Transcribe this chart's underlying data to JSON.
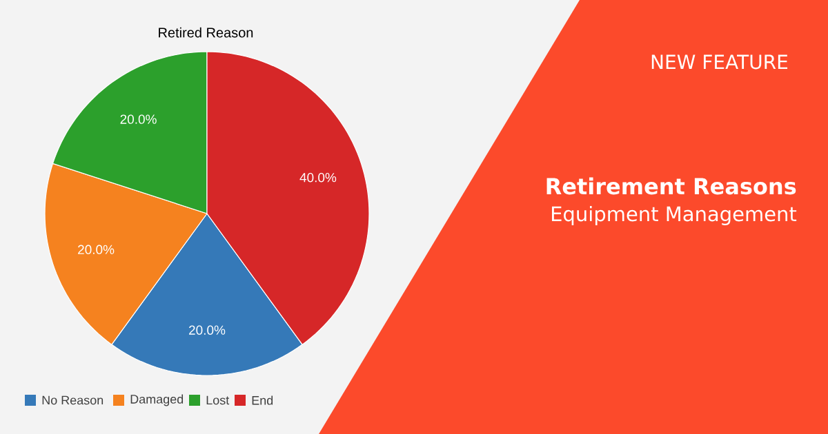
{
  "chart_data": {
    "type": "pie",
    "title": "Retired Reason",
    "categories": [
      "No Reason",
      "Damaged",
      "Lost",
      "End"
    ],
    "values": [
      20,
      20,
      20,
      40
    ],
    "value_labels": [
      "20.0%",
      "20.0%",
      "20.0%",
      "40.0%"
    ],
    "colors": [
      "#3579b8",
      "#f5821f",
      "#2ca02c",
      "#d62728"
    ],
    "legend": "bottom",
    "annotations": [
      "NEW FEATURE",
      "**Retirement Reasons**",
      "Equipment Management"
    ]
  }
}
